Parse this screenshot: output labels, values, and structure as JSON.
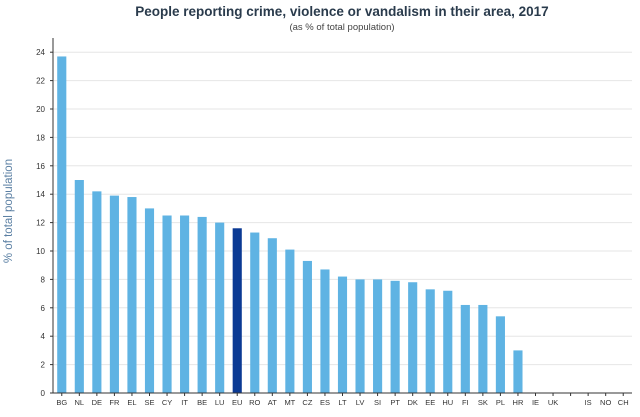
{
  "chart_data": {
    "type": "bar",
    "title": "People reporting crime, violence or vandalism in their area, 2017",
    "subtitle": "(as % of total population)",
    "xlabel": "",
    "ylabel": "% of total population",
    "ylim": [
      0,
      25
    ],
    "yticks": [
      0,
      2,
      4,
      6,
      8,
      10,
      12,
      14,
      16,
      18,
      20,
      22,
      24
    ],
    "grid": true,
    "legend": "none",
    "categories": [
      "BG",
      "NL",
      "DE",
      "FR",
      "EL",
      "SE",
      "CY",
      "IT",
      "BE",
      "LU",
      "EU",
      "RO",
      "AT",
      "MT",
      "CZ",
      "ES",
      "LT",
      "LV",
      "SI",
      "PT",
      "DK",
      "EE",
      "HU",
      "FI",
      "SK",
      "PL",
      "HR",
      "IE",
      "UK",
      "",
      "IS",
      "NO",
      "CH"
    ],
    "values": [
      23.7,
      15.0,
      14.2,
      13.9,
      13.8,
      13.0,
      12.5,
      12.5,
      12.4,
      12.0,
      11.6,
      11.3,
      10.9,
      10.1,
      9.3,
      8.7,
      8.2,
      8.0,
      8.0,
      7.9,
      7.8,
      7.3,
      7.2,
      6.2,
      6.2,
      5.4,
      3.0,
      null,
      null,
      null,
      null,
      null,
      null
    ],
    "colors": {
      "bar": "#5fb3e3",
      "highlight": "#0b3a94",
      "highlight_category": "EU"
    }
  }
}
